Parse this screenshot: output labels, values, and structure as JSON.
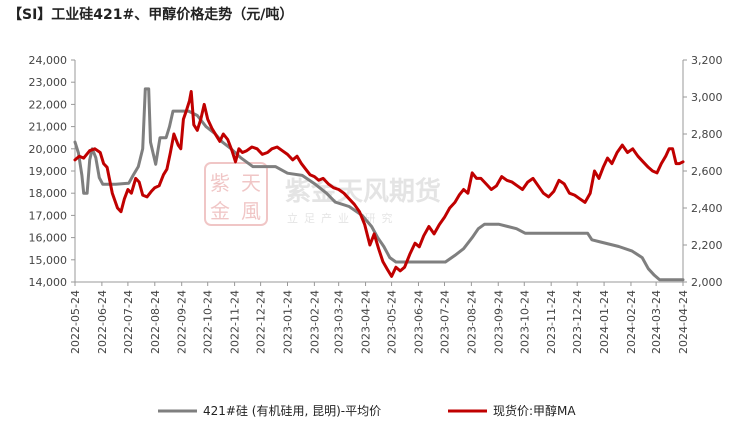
{
  "chart_data": {
    "type": "line",
    "title": "【SI】工业硅421#、甲醇价格走势（元/吨）",
    "watermark": {
      "logo_text": [
        "紫",
        "天",
        "金",
        "風"
      ],
      "brand": "紫金天风期货",
      "slogan": "立足产业 研究"
    },
    "x_ticks": [
      "2022-05-24",
      "2022-06-24",
      "2022-07-24",
      "2022-08-24",
      "2022-09-24",
      "2022-10-24",
      "2022-11-24",
      "2022-12-24",
      "2023-01-24",
      "2023-02-24",
      "2023-03-24",
      "2023-04-24",
      "2023-05-24",
      "2023-06-24",
      "2023-07-24",
      "2023-08-24",
      "2023-09-24",
      "2023-10-24",
      "2023-11-24",
      "2023-12-24",
      "2024-01-24",
      "2024-02-24",
      "2024-03-24",
      "2024-04-24"
    ],
    "y_left": {
      "min": 14000,
      "max": 24000,
      "step": 1000,
      "labels": [
        "14,000",
        "15,000",
        "16,000",
        "17,000",
        "18,000",
        "19,000",
        "20,000",
        "21,000",
        "22,000",
        "23,000",
        "24,000"
      ]
    },
    "y_right": {
      "min": 2000,
      "max": 3200,
      "step": 200,
      "labels": [
        "2,000",
        "2,200",
        "2,400",
        "2,600",
        "2,800",
        "3,000",
        "3,200"
      ]
    },
    "legend_position": "bottom",
    "grid": false,
    "series": [
      {
        "name": "421#硅 (有机硅用, 昆明)-平均价",
        "axis": "left",
        "color": "#7f7f7f",
        "points": [
          [
            "2022-05-24",
            20300
          ],
          [
            "2022-05-28",
            19800
          ],
          [
            "2022-06-01",
            18800
          ],
          [
            "2022-06-03",
            18000
          ],
          [
            "2022-06-07",
            18000
          ],
          [
            "2022-06-10",
            19500
          ],
          [
            "2022-06-13",
            20000
          ],
          [
            "2022-06-17",
            19600
          ],
          [
            "2022-06-21",
            18700
          ],
          [
            "2022-06-25",
            18400
          ],
          [
            "2022-07-10",
            18400
          ],
          [
            "2022-07-25",
            18450
          ],
          [
            "2022-07-30",
            18800
          ],
          [
            "2022-08-05",
            19200
          ],
          [
            "2022-08-10",
            20000
          ],
          [
            "2022-08-13",
            22700
          ],
          [
            "2022-08-17",
            22700
          ],
          [
            "2022-08-19",
            20300
          ],
          [
            "2022-08-25",
            19300
          ],
          [
            "2022-08-30",
            20500
          ],
          [
            "2022-09-06",
            20500
          ],
          [
            "2022-09-10",
            21000
          ],
          [
            "2022-09-14",
            21700
          ],
          [
            "2022-10-02",
            21700
          ],
          [
            "2022-10-12",
            21500
          ],
          [
            "2022-10-22",
            21000
          ],
          [
            "2022-11-01",
            20700
          ],
          [
            "2022-11-10",
            20300
          ],
          [
            "2022-11-20",
            20000
          ],
          [
            "2022-12-01",
            19600
          ],
          [
            "2022-12-15",
            19200
          ],
          [
            "2023-01-10",
            19200
          ],
          [
            "2023-01-24",
            18900
          ],
          [
            "2023-02-10",
            18800
          ],
          [
            "2023-02-25",
            18400
          ],
          [
            "2023-03-10",
            18000
          ],
          [
            "2023-03-20",
            17600
          ],
          [
            "2023-04-05",
            17400
          ],
          [
            "2023-04-20",
            17000
          ],
          [
            "2023-05-01",
            16500
          ],
          [
            "2023-05-08",
            16000
          ],
          [
            "2023-05-15",
            15600
          ],
          [
            "2023-05-22",
            15100
          ],
          [
            "2023-05-29",
            14900
          ],
          [
            "2023-06-10",
            14900
          ],
          [
            "2023-07-05",
            14900
          ],
          [
            "2023-07-25",
            14900
          ],
          [
            "2023-08-05",
            15200
          ],
          [
            "2023-08-15",
            15500
          ],
          [
            "2023-08-25",
            16000
          ],
          [
            "2023-09-01",
            16400
          ],
          [
            "2023-09-08",
            16600
          ],
          [
            "2023-09-25",
            16600
          ],
          [
            "2023-10-05",
            16500
          ],
          [
            "2023-10-15",
            16400
          ],
          [
            "2023-10-25",
            16200
          ],
          [
            "2023-11-20",
            16200
          ],
          [
            "2023-12-24",
            16200
          ],
          [
            "2024-01-05",
            16200
          ],
          [
            "2024-01-10",
            15900
          ],
          [
            "2024-01-20",
            15800
          ],
          [
            "2024-02-10",
            15600
          ],
          [
            "2024-02-25",
            15400
          ],
          [
            "2024-03-08",
            15100
          ],
          [
            "2024-03-15",
            14600
          ],
          [
            "2024-03-22",
            14300
          ],
          [
            "2024-03-28",
            14100
          ],
          [
            "2024-04-24",
            14100
          ]
        ]
      },
      {
        "name": "现货价:甲醇MA",
        "axis": "right",
        "color": "#c00000",
        "points": [
          [
            "2022-05-24",
            2660
          ],
          [
            "2022-05-29",
            2680
          ],
          [
            "2022-06-03",
            2670
          ],
          [
            "2022-06-10",
            2710
          ],
          [
            "2022-06-16",
            2720
          ],
          [
            "2022-06-22",
            2700
          ],
          [
            "2022-06-26",
            2640
          ],
          [
            "2022-06-30",
            2620
          ],
          [
            "2022-07-06",
            2480
          ],
          [
            "2022-07-12",
            2400
          ],
          [
            "2022-07-16",
            2380
          ],
          [
            "2022-07-20",
            2450
          ],
          [
            "2022-07-24",
            2500
          ],
          [
            "2022-07-28",
            2480
          ],
          [
            "2022-08-02",
            2560
          ],
          [
            "2022-08-06",
            2540
          ],
          [
            "2022-08-10",
            2470
          ],
          [
            "2022-08-15",
            2460
          ],
          [
            "2022-08-20",
            2490
          ],
          [
            "2022-08-24",
            2510
          ],
          [
            "2022-08-29",
            2520
          ],
          [
            "2022-09-03",
            2580
          ],
          [
            "2022-09-07",
            2610
          ],
          [
            "2022-09-11",
            2700
          ],
          [
            "2022-09-15",
            2800
          ],
          [
            "2022-09-20",
            2740
          ],
          [
            "2022-09-23",
            2720
          ],
          [
            "2022-09-26",
            2880
          ],
          [
            "2022-09-29",
            2920
          ],
          [
            "2022-10-03",
            2980
          ],
          [
            "2022-10-05",
            3030
          ],
          [
            "2022-10-08",
            2850
          ],
          [
            "2022-10-12",
            2820
          ],
          [
            "2022-10-16",
            2880
          ],
          [
            "2022-10-20",
            2960
          ],
          [
            "2022-10-24",
            2880
          ],
          [
            "2022-10-29",
            2830
          ],
          [
            "2022-11-03",
            2790
          ],
          [
            "2022-11-07",
            2760
          ],
          [
            "2022-11-11",
            2800
          ],
          [
            "2022-11-16",
            2770
          ],
          [
            "2022-11-21",
            2710
          ],
          [
            "2022-11-25",
            2650
          ],
          [
            "2022-11-29",
            2720
          ],
          [
            "2022-12-03",
            2700
          ],
          [
            "2022-12-08",
            2710
          ],
          [
            "2022-12-14",
            2730
          ],
          [
            "2022-12-20",
            2720
          ],
          [
            "2022-12-26",
            2690
          ],
          [
            "2023-01-01",
            2700
          ],
          [
            "2023-01-06",
            2720
          ],
          [
            "2023-01-12",
            2730
          ],
          [
            "2023-01-18",
            2710
          ],
          [
            "2023-01-24",
            2690
          ],
          [
            "2023-01-30",
            2660
          ],
          [
            "2023-02-04",
            2680
          ],
          [
            "2023-02-09",
            2640
          ],
          [
            "2023-02-14",
            2610
          ],
          [
            "2023-02-19",
            2580
          ],
          [
            "2023-02-24",
            2570
          ],
          [
            "2023-03-01",
            2550
          ],
          [
            "2023-03-06",
            2560
          ],
          [
            "2023-03-12",
            2530
          ],
          [
            "2023-03-18",
            2510
          ],
          [
            "2023-03-24",
            2500
          ],
          [
            "2023-03-30",
            2480
          ],
          [
            "2023-04-05",
            2450
          ],
          [
            "2023-04-11",
            2420
          ],
          [
            "2023-04-17",
            2380
          ],
          [
            "2023-04-23",
            2310
          ],
          [
            "2023-04-29",
            2200
          ],
          [
            "2023-05-04",
            2260
          ],
          [
            "2023-05-09",
            2180
          ],
          [
            "2023-05-14",
            2110
          ],
          [
            "2023-05-19",
            2070
          ],
          [
            "2023-05-24",
            2030
          ],
          [
            "2023-05-29",
            2080
          ],
          [
            "2023-06-03",
            2060
          ],
          [
            "2023-06-08",
            2080
          ],
          [
            "2023-06-14",
            2150
          ],
          [
            "2023-06-20",
            2210
          ],
          [
            "2023-06-25",
            2190
          ],
          [
            "2023-06-30",
            2250
          ],
          [
            "2023-07-06",
            2300
          ],
          [
            "2023-07-12",
            2260
          ],
          [
            "2023-07-18",
            2310
          ],
          [
            "2023-07-24",
            2350
          ],
          [
            "2023-07-30",
            2400
          ],
          [
            "2023-08-05",
            2430
          ],
          [
            "2023-08-10",
            2470
          ],
          [
            "2023-08-15",
            2500
          ],
          [
            "2023-08-20",
            2480
          ],
          [
            "2023-08-25",
            2590
          ],
          [
            "2023-08-30",
            2560
          ],
          [
            "2023-09-04",
            2560
          ],
          [
            "2023-09-10",
            2530
          ],
          [
            "2023-09-16",
            2500
          ],
          [
            "2023-09-22",
            2520
          ],
          [
            "2023-09-28",
            2570
          ],
          [
            "2023-10-04",
            2550
          ],
          [
            "2023-10-10",
            2540
          ],
          [
            "2023-10-16",
            2520
          ],
          [
            "2023-10-22",
            2500
          ],
          [
            "2023-10-28",
            2540
          ],
          [
            "2023-11-03",
            2560
          ],
          [
            "2023-11-09",
            2520
          ],
          [
            "2023-11-15",
            2480
          ],
          [
            "2023-11-21",
            2460
          ],
          [
            "2023-11-27",
            2490
          ],
          [
            "2023-12-03",
            2550
          ],
          [
            "2023-12-09",
            2530
          ],
          [
            "2023-12-15",
            2480
          ],
          [
            "2023-12-21",
            2470
          ],
          [
            "2023-12-27",
            2450
          ],
          [
            "2024-01-02",
            2430
          ],
          [
            "2024-01-08",
            2480
          ],
          [
            "2024-01-13",
            2600
          ],
          [
            "2024-01-18",
            2560
          ],
          [
            "2024-01-23",
            2620
          ],
          [
            "2024-01-28",
            2670
          ],
          [
            "2024-02-02",
            2640
          ],
          [
            "2024-02-08",
            2700
          ],
          [
            "2024-02-14",
            2740
          ],
          [
            "2024-02-20",
            2700
          ],
          [
            "2024-02-26",
            2720
          ],
          [
            "2024-03-03",
            2680
          ],
          [
            "2024-03-09",
            2650
          ],
          [
            "2024-03-15",
            2620
          ],
          [
            "2024-03-20",
            2600
          ],
          [
            "2024-03-25",
            2590
          ],
          [
            "2024-03-30",
            2640
          ],
          [
            "2024-04-04",
            2680
          ],
          [
            "2024-04-08",
            2720
          ],
          [
            "2024-04-12",
            2720
          ],
          [
            "2024-04-16",
            2640
          ],
          [
            "2024-04-20",
            2640
          ],
          [
            "2024-04-24",
            2650
          ]
        ]
      }
    ]
  }
}
